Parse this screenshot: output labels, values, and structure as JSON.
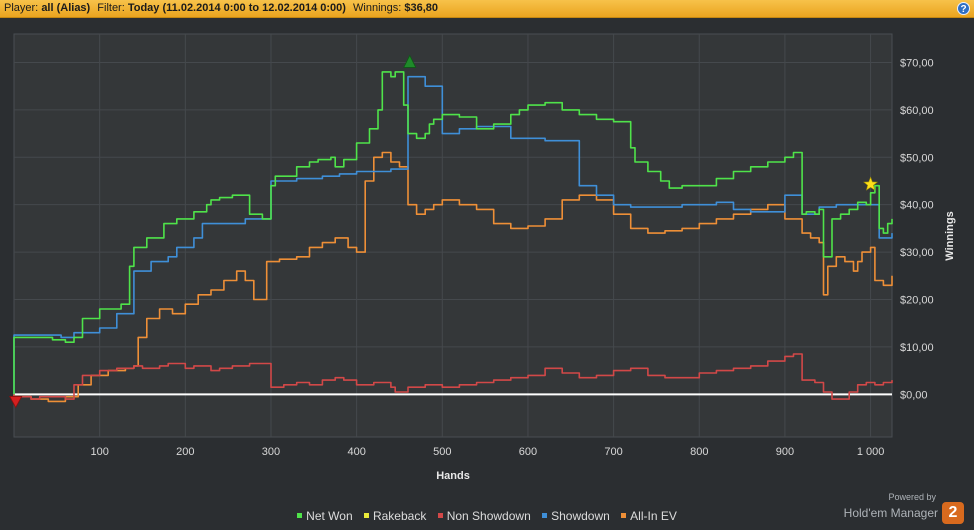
{
  "header": {
    "player_label": "Player:",
    "player_value": "all (Alias)",
    "filter_label": "Filter:",
    "filter_value": "Today (11.02.2014 0:00 to 12.02.2014 0:00)",
    "winnings_label": "Winnings:",
    "winnings_value": "$36,80",
    "help_label": "?"
  },
  "brand": {
    "powered_by": "Powered by",
    "name": "Hold'em Manager",
    "logo_text": "2"
  },
  "chart_data": {
    "type": "line",
    "xlabel": "Hands",
    "ylabel": "Winnings",
    "xlim": [
      0,
      1025
    ],
    "ylim": [
      -9,
      76
    ],
    "x_ticks": [
      100,
      200,
      300,
      400,
      500,
      600,
      700,
      800,
      900,
      1000
    ],
    "x_tick_labels": [
      "100",
      "200",
      "300",
      "400",
      "500",
      "600",
      "700",
      "800",
      "900",
      "1 000"
    ],
    "y_ticks": [
      0,
      10,
      20,
      30,
      40,
      50,
      60,
      70
    ],
    "y_tick_labels": [
      "$0,00",
      "$10,00",
      "$20,00",
      "$30,00",
      "$40,00",
      "$50,00",
      "$60,00",
      "$70,00"
    ],
    "grid": true,
    "legend_position": "bottom-center",
    "markers": {
      "min": {
        "x": 2,
        "y": -1.5,
        "color": "#d42020"
      },
      "max": {
        "x": 462,
        "y": 70,
        "color": "#1f8a2a"
      },
      "star": {
        "x": 1000,
        "y": 44.3,
        "color": "#ffe01a"
      }
    },
    "series": [
      {
        "name": "Net Won",
        "color": "#4fe34a",
        "step": true,
        "x": [
          0,
          0,
          45,
          60,
          70,
          80,
          100,
          125,
          135,
          140,
          155,
          160,
          175,
          190,
          200,
          210,
          225,
          230,
          240,
          255,
          275,
          290,
          300,
          305,
          330,
          345,
          355,
          370,
          375,
          385,
          400,
          415,
          425,
          430,
          440,
          445,
          455,
          460,
          470,
          480,
          485,
          490,
          500,
          520,
          540,
          560,
          580,
          590,
          600,
          620,
          640,
          660,
          680,
          700,
          720,
          725,
          740,
          755,
          765,
          780,
          800,
          820,
          840,
          860,
          880,
          900,
          910,
          920,
          925,
          935,
          940,
          945,
          955,
          965,
          975,
          985,
          995,
          1000,
          1005,
          1010,
          1015,
          1020,
          1025
        ],
        "y": [
          0,
          12,
          11.5,
          11,
          12,
          16,
          18,
          19,
          27,
          31,
          33,
          33,
          36,
          37,
          37,
          38.5,
          40,
          41,
          41.5,
          42,
          38,
          37,
          44,
          46,
          48,
          49,
          49.5,
          50,
          48,
          49.5,
          53,
          56,
          60,
          68,
          67,
          68,
          61,
          55,
          54,
          55,
          57,
          58,
          59,
          58.5,
          56,
          57,
          59,
          60,
          61,
          61.5,
          60,
          59,
          58,
          57.5,
          52,
          49,
          47,
          45,
          43.5,
          44,
          44,
          45.5,
          47,
          48,
          49,
          50,
          51,
          38,
          38.5,
          38,
          39,
          29,
          37,
          38,
          39,
          40.5,
          40,
          42.5,
          44,
          35,
          34,
          36,
          37
        ]
      },
      {
        "name": "Rakeback",
        "color": "#eaea3a",
        "step": true,
        "x": [],
        "y": []
      },
      {
        "name": "Non Showdown",
        "color": "#d24848",
        "step": true,
        "x": [
          0,
          0,
          20,
          30,
          50,
          60,
          70,
          80,
          100,
          120,
          140,
          150,
          170,
          180,
          200,
          210,
          230,
          240,
          255,
          275,
          290,
          300,
          315,
          330,
          345,
          360,
          375,
          385,
          400,
          420,
          440,
          445,
          450,
          460,
          480,
          500,
          520,
          540,
          560,
          580,
          600,
          620,
          640,
          660,
          680,
          700,
          720,
          740,
          760,
          780,
          800,
          820,
          840,
          860,
          880,
          900,
          910,
          920,
          935,
          945,
          955,
          965,
          975,
          985,
          995,
          1005,
          1015,
          1025
        ],
        "y": [
          0,
          -0.5,
          -1,
          -0.5,
          -0.5,
          -1,
          2,
          4,
          5,
          5.5,
          6,
          5.5,
          6,
          6.5,
          5.5,
          6,
          5,
          5.5,
          6,
          6.5,
          6.5,
          1.5,
          2,
          2.5,
          2,
          3,
          3.5,
          3,
          2,
          2.5,
          1.5,
          0.5,
          0.5,
          1.5,
          2,
          1.5,
          2,
          2.5,
          3,
          3.5,
          4,
          5.5,
          4.5,
          3.5,
          4,
          5,
          5.5,
          4,
          3.5,
          3.5,
          4.5,
          5,
          5.5,
          6,
          7,
          8,
          8.5,
          3,
          2.5,
          0.5,
          -1,
          -1,
          0.5,
          2,
          2.5,
          2,
          2.5,
          3
        ]
      },
      {
        "name": "Showdown",
        "color": "#3f8fd8",
        "step": true,
        "x": [
          0,
          0,
          55,
          70,
          100,
          120,
          140,
          160,
          180,
          190,
          210,
          220,
          250,
          270,
          300,
          330,
          360,
          380,
          400,
          440,
          460,
          480,
          500,
          520,
          540,
          560,
          580,
          600,
          620,
          640,
          660,
          680,
          700,
          720,
          730,
          760,
          780,
          800,
          820,
          840,
          860,
          880,
          900,
          920,
          940,
          960,
          980,
          1000,
          1010,
          1025
        ],
        "y": [
          0,
          12.5,
          12,
          13,
          14,
          17,
          26,
          28,
          29,
          31,
          33,
          36,
          36,
          37,
          45,
          45.5,
          46,
          46.5,
          47,
          47.5,
          67,
          65,
          55,
          56,
          56.5,
          56.5,
          54,
          54,
          53.5,
          53.5,
          44,
          42,
          40,
          39.5,
          39.5,
          39.5,
          40,
          40,
          40.5,
          39,
          38.5,
          38.5,
          42,
          38,
          39.5,
          40,
          40,
          40,
          33,
          34
        ]
      },
      {
        "name": "All-In EV",
        "color": "#ee8f37",
        "step": true,
        "x": [
          0,
          0,
          20,
          40,
          60,
          75,
          90,
          110,
          130,
          140,
          145,
          155,
          170,
          185,
          200,
          215,
          230,
          245,
          260,
          270,
          280,
          295,
          310,
          330,
          345,
          360,
          375,
          390,
          400,
          410,
          420,
          430,
          440,
          450,
          460,
          470,
          480,
          490,
          500,
          520,
          540,
          560,
          580,
          600,
          620,
          640,
          660,
          680,
          700,
          720,
          740,
          760,
          780,
          800,
          820,
          840,
          860,
          880,
          900,
          910,
          920,
          930,
          940,
          945,
          950,
          960,
          970,
          980,
          985,
          990,
          1000,
          1005,
          1015,
          1025
        ],
        "y": [
          0,
          -0.5,
          -1,
          -1.5,
          -0.5,
          2,
          4,
          5,
          5.5,
          6,
          12,
          16,
          18,
          17,
          19,
          21,
          22,
          24,
          26,
          24,
          20,
          28,
          28.5,
          29,
          31,
          32,
          33,
          31,
          30,
          45,
          50,
          51,
          49,
          48,
          40,
          38,
          39,
          40,
          41,
          40,
          39,
          36,
          35,
          35.5,
          37,
          41,
          42,
          41,
          38,
          35,
          34,
          34.5,
          35,
          36,
          37,
          38,
          39,
          40,
          37,
          37,
          34,
          33,
          32,
          21,
          27,
          29,
          28,
          26,
          28,
          30,
          31,
          24,
          23,
          25
        ]
      }
    ]
  }
}
